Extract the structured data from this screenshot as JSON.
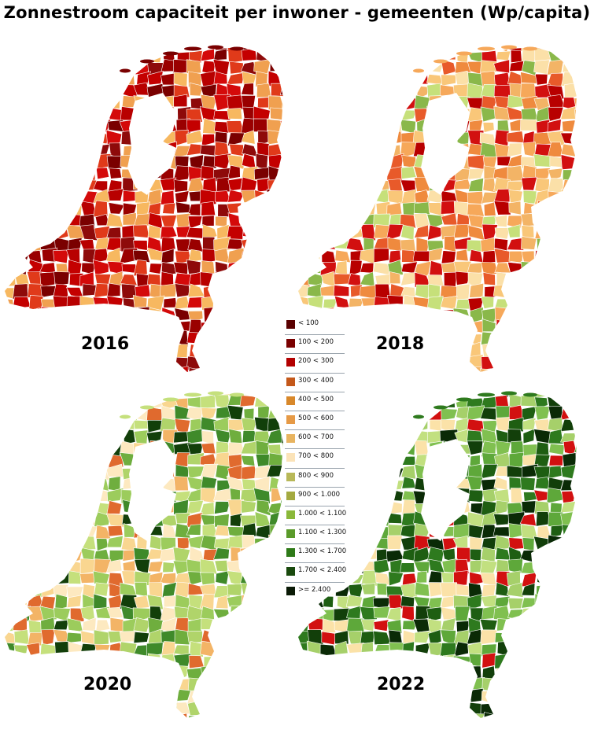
{
  "title": "Zonnestroom capaciteit per inwoner - gemeenten (Wp/capita)",
  "maps": [
    {
      "year": "2016",
      "palette": [
        "#7a0000",
        "#9a0000",
        "#b80000",
        "#c40000",
        "#d40a0a",
        "#e03a1a",
        "#8e0a0a",
        "#f0a050",
        "#f7b860"
      ]
    },
    {
      "year": "2018",
      "palette": [
        "#f6a85a",
        "#f3b466",
        "#f9c779",
        "#e85a2a",
        "#d21010",
        "#b80000",
        "#fbe0a8",
        "#c6e07a",
        "#8ab84a",
        "#ef8a3e"
      ]
    },
    {
      "year": "2020",
      "palette": [
        "#c5e07c",
        "#b0d46a",
        "#9ccc5c",
        "#f9d690",
        "#f3b466",
        "#6fae3e",
        "#3f8a2a",
        "#fde9c0",
        "#e06a2e",
        "#123f0a"
      ]
    },
    {
      "year": "2022",
      "palette": [
        "#2e7a1e",
        "#1e5e12",
        "#123f0a",
        "#5ea83a",
        "#80c050",
        "#a6d06a",
        "#c2e080",
        "#fbe2a8",
        "#d21010",
        "#0a2a06"
      ]
    }
  ],
  "legend": [
    {
      "label": "< 100",
      "color": "#5a0000"
    },
    {
      "label": "100 < 200",
      "color": "#7a0000"
    },
    {
      "label": "200 < 300",
      "color": "#b30000"
    },
    {
      "label": "300 < 400",
      "color": "#c4581a"
    },
    {
      "label": "400 < 500",
      "color": "#d8882a"
    },
    {
      "label": "500 < 600",
      "color": "#e69a46"
    },
    {
      "label": "600 < 700",
      "color": "#e8b460"
    },
    {
      "label": "700 < 800",
      "color": "#fbe3b8"
    },
    {
      "label": "800 < 900",
      "color": "#b8b858"
    },
    {
      "label": "900 < 1.000",
      "color": "#a4aa40"
    },
    {
      "label": "1.000 < 1.100",
      "color": "#8ab83a"
    },
    {
      "label": "1.100 < 1.300",
      "color": "#5a9a2a"
    },
    {
      "label": "1.300 < 1.700",
      "color": "#2e7a18"
    },
    {
      "label": "1.700 < 2.400",
      "color": "#1a4a0e"
    },
    {
      "label": ">= 2.400",
      "color": "#0a1a06"
    }
  ]
}
